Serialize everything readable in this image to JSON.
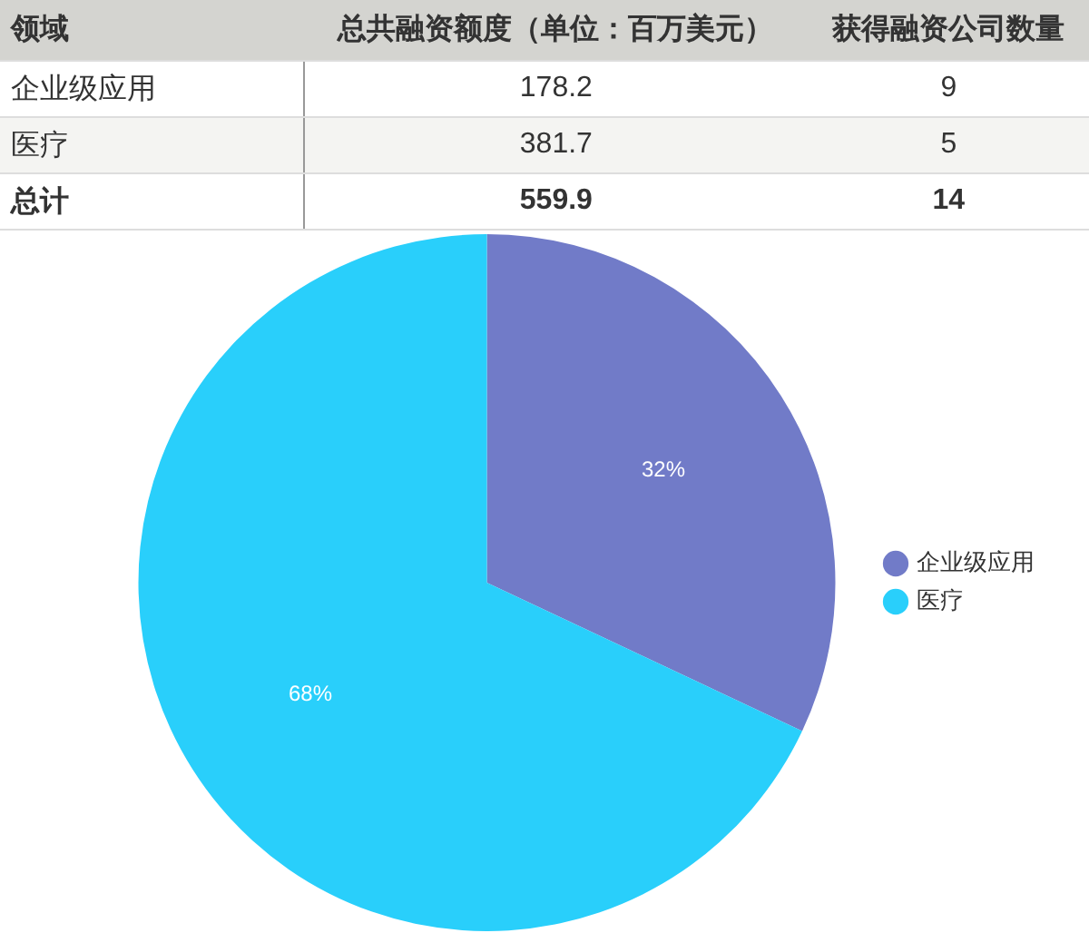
{
  "chart_data": [
    {
      "type": "other",
      "xlabel": "领域",
      "categories": [
        "企业级应用",
        "医疗",
        "总计"
      ],
      "data_labels": true,
      "series": [
        {
          "name": "总共融资额度（单位：百万美元）",
          "colors": [
            "#ffffff",
            "#f4f4f2",
            "#ffffff"
          ],
          "values": [
            178.2,
            381.7,
            559.9
          ]
        },
        {
          "name": "获得融资公司数量",
          "colors": [
            "#ffffff",
            "#f4f4f2",
            "#ffffff"
          ],
          "values": [
            9,
            5,
            14
          ]
        }
      ]
    },
    {
      "type": "pie",
      "categories": [
        "企业级应用",
        "医疗"
      ],
      "values": [
        32,
        68
      ],
      "colors": [
        "#717bc8",
        "#29cffb"
      ],
      "value_labels": [
        "32%",
        "68%"
      ],
      "legend": "right"
    }
  ]
}
